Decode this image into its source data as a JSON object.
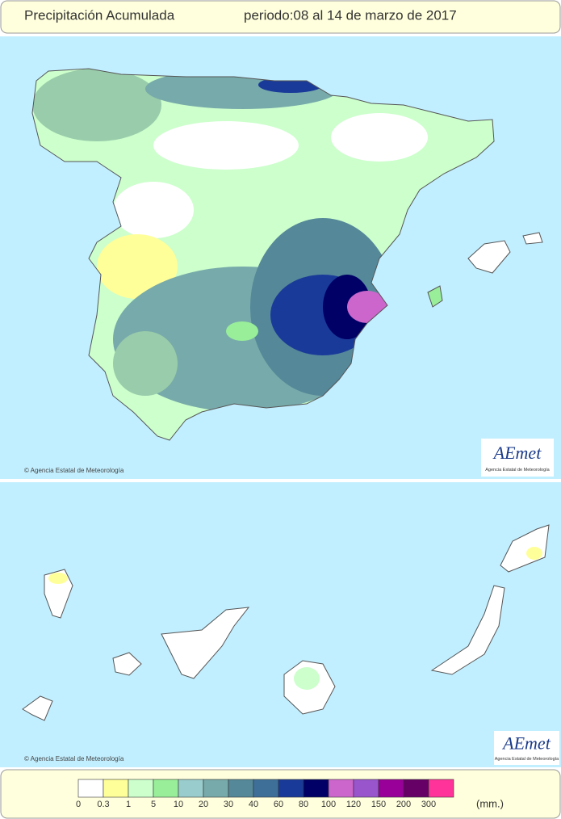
{
  "header": {
    "title": "Precipitación Acumulada",
    "period": "periodo:08 al 14 de marzo de 2017"
  },
  "maps": [
    {
      "credit": "© Agencia Estatal de Meteorología",
      "logo": "AEmet",
      "logo_sub": "Agencia Estatal de Meteorología"
    },
    {
      "credit": "© Agencia Estatal de Meteorología",
      "logo": "AEmet",
      "logo_sub": "Agencia Estatal de Meteorología"
    }
  ],
  "legend": {
    "unit": "(mm.)",
    "items": [
      {
        "label": "0",
        "color": "#ffffff"
      },
      {
        "label": "0.3",
        "color": "#ffff99"
      },
      {
        "label": "1",
        "color": "#ccffcc"
      },
      {
        "label": "5",
        "color": "#99ee99"
      },
      {
        "label": "10",
        "color": "#99cccc"
      },
      {
        "label": "20",
        "color": "#77aaaa"
      },
      {
        "label": "30",
        "color": "#558899"
      },
      {
        "label": "40",
        "color": "#3e6f99"
      },
      {
        "label": "60",
        "color": "#1a3a99"
      },
      {
        "label": "80",
        "color": "#000066"
      },
      {
        "label": "100",
        "color": "#cc66cc"
      },
      {
        "label": "120",
        "color": "#9955cc"
      },
      {
        "label": "150",
        "color": "#990099"
      },
      {
        "label": "200",
        "color": "#660066"
      },
      {
        "label": "300",
        "color": "#ff3399"
      }
    ]
  }
}
